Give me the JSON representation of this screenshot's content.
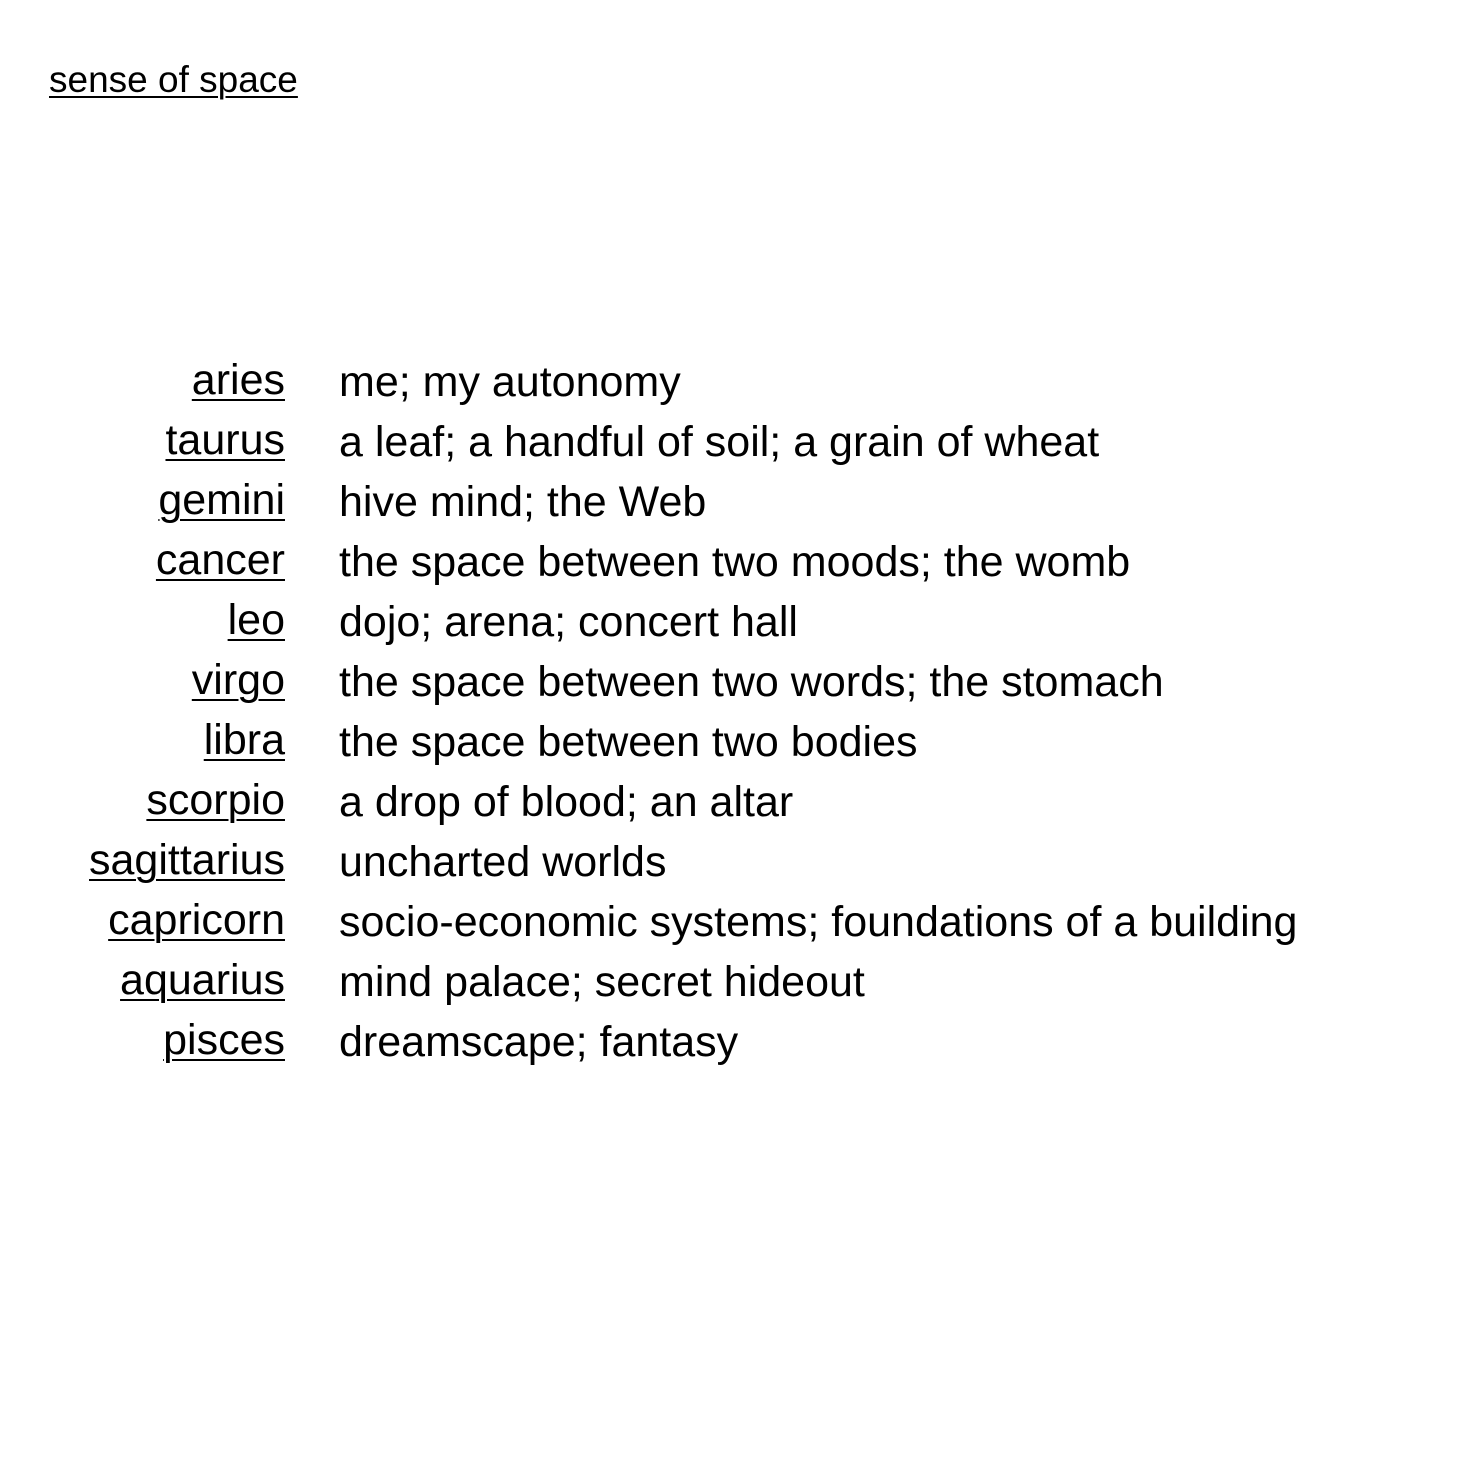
{
  "title": "sense of space",
  "signs": [
    {
      "name": "aries",
      "meaning": "me; my autonomy"
    },
    {
      "name": "taurus",
      "meaning": "a leaf; a handful of soil; a grain of wheat"
    },
    {
      "name": "gemini",
      "meaning": "hive mind; the Web"
    },
    {
      "name": "cancer",
      "meaning": "the space between two moods; the womb"
    },
    {
      "name": "leo",
      "meaning": "dojo; arena; concert hall"
    },
    {
      "name": "virgo",
      "meaning": "the space between two words; the stomach"
    },
    {
      "name": "libra",
      "meaning": "the space between two bodies"
    },
    {
      "name": "scorpio",
      "meaning": "a drop of blood; an altar"
    },
    {
      "name": "sagittarius",
      "meaning": "uncharted worlds"
    },
    {
      "name": "capricorn",
      "meaning": "socio-economic systems; foundations of a building"
    },
    {
      "name": "aquarius",
      "meaning": "mind palace; secret hideout"
    },
    {
      "name": "pisces",
      "meaning": "dreamscape; fantasy"
    }
  ]
}
